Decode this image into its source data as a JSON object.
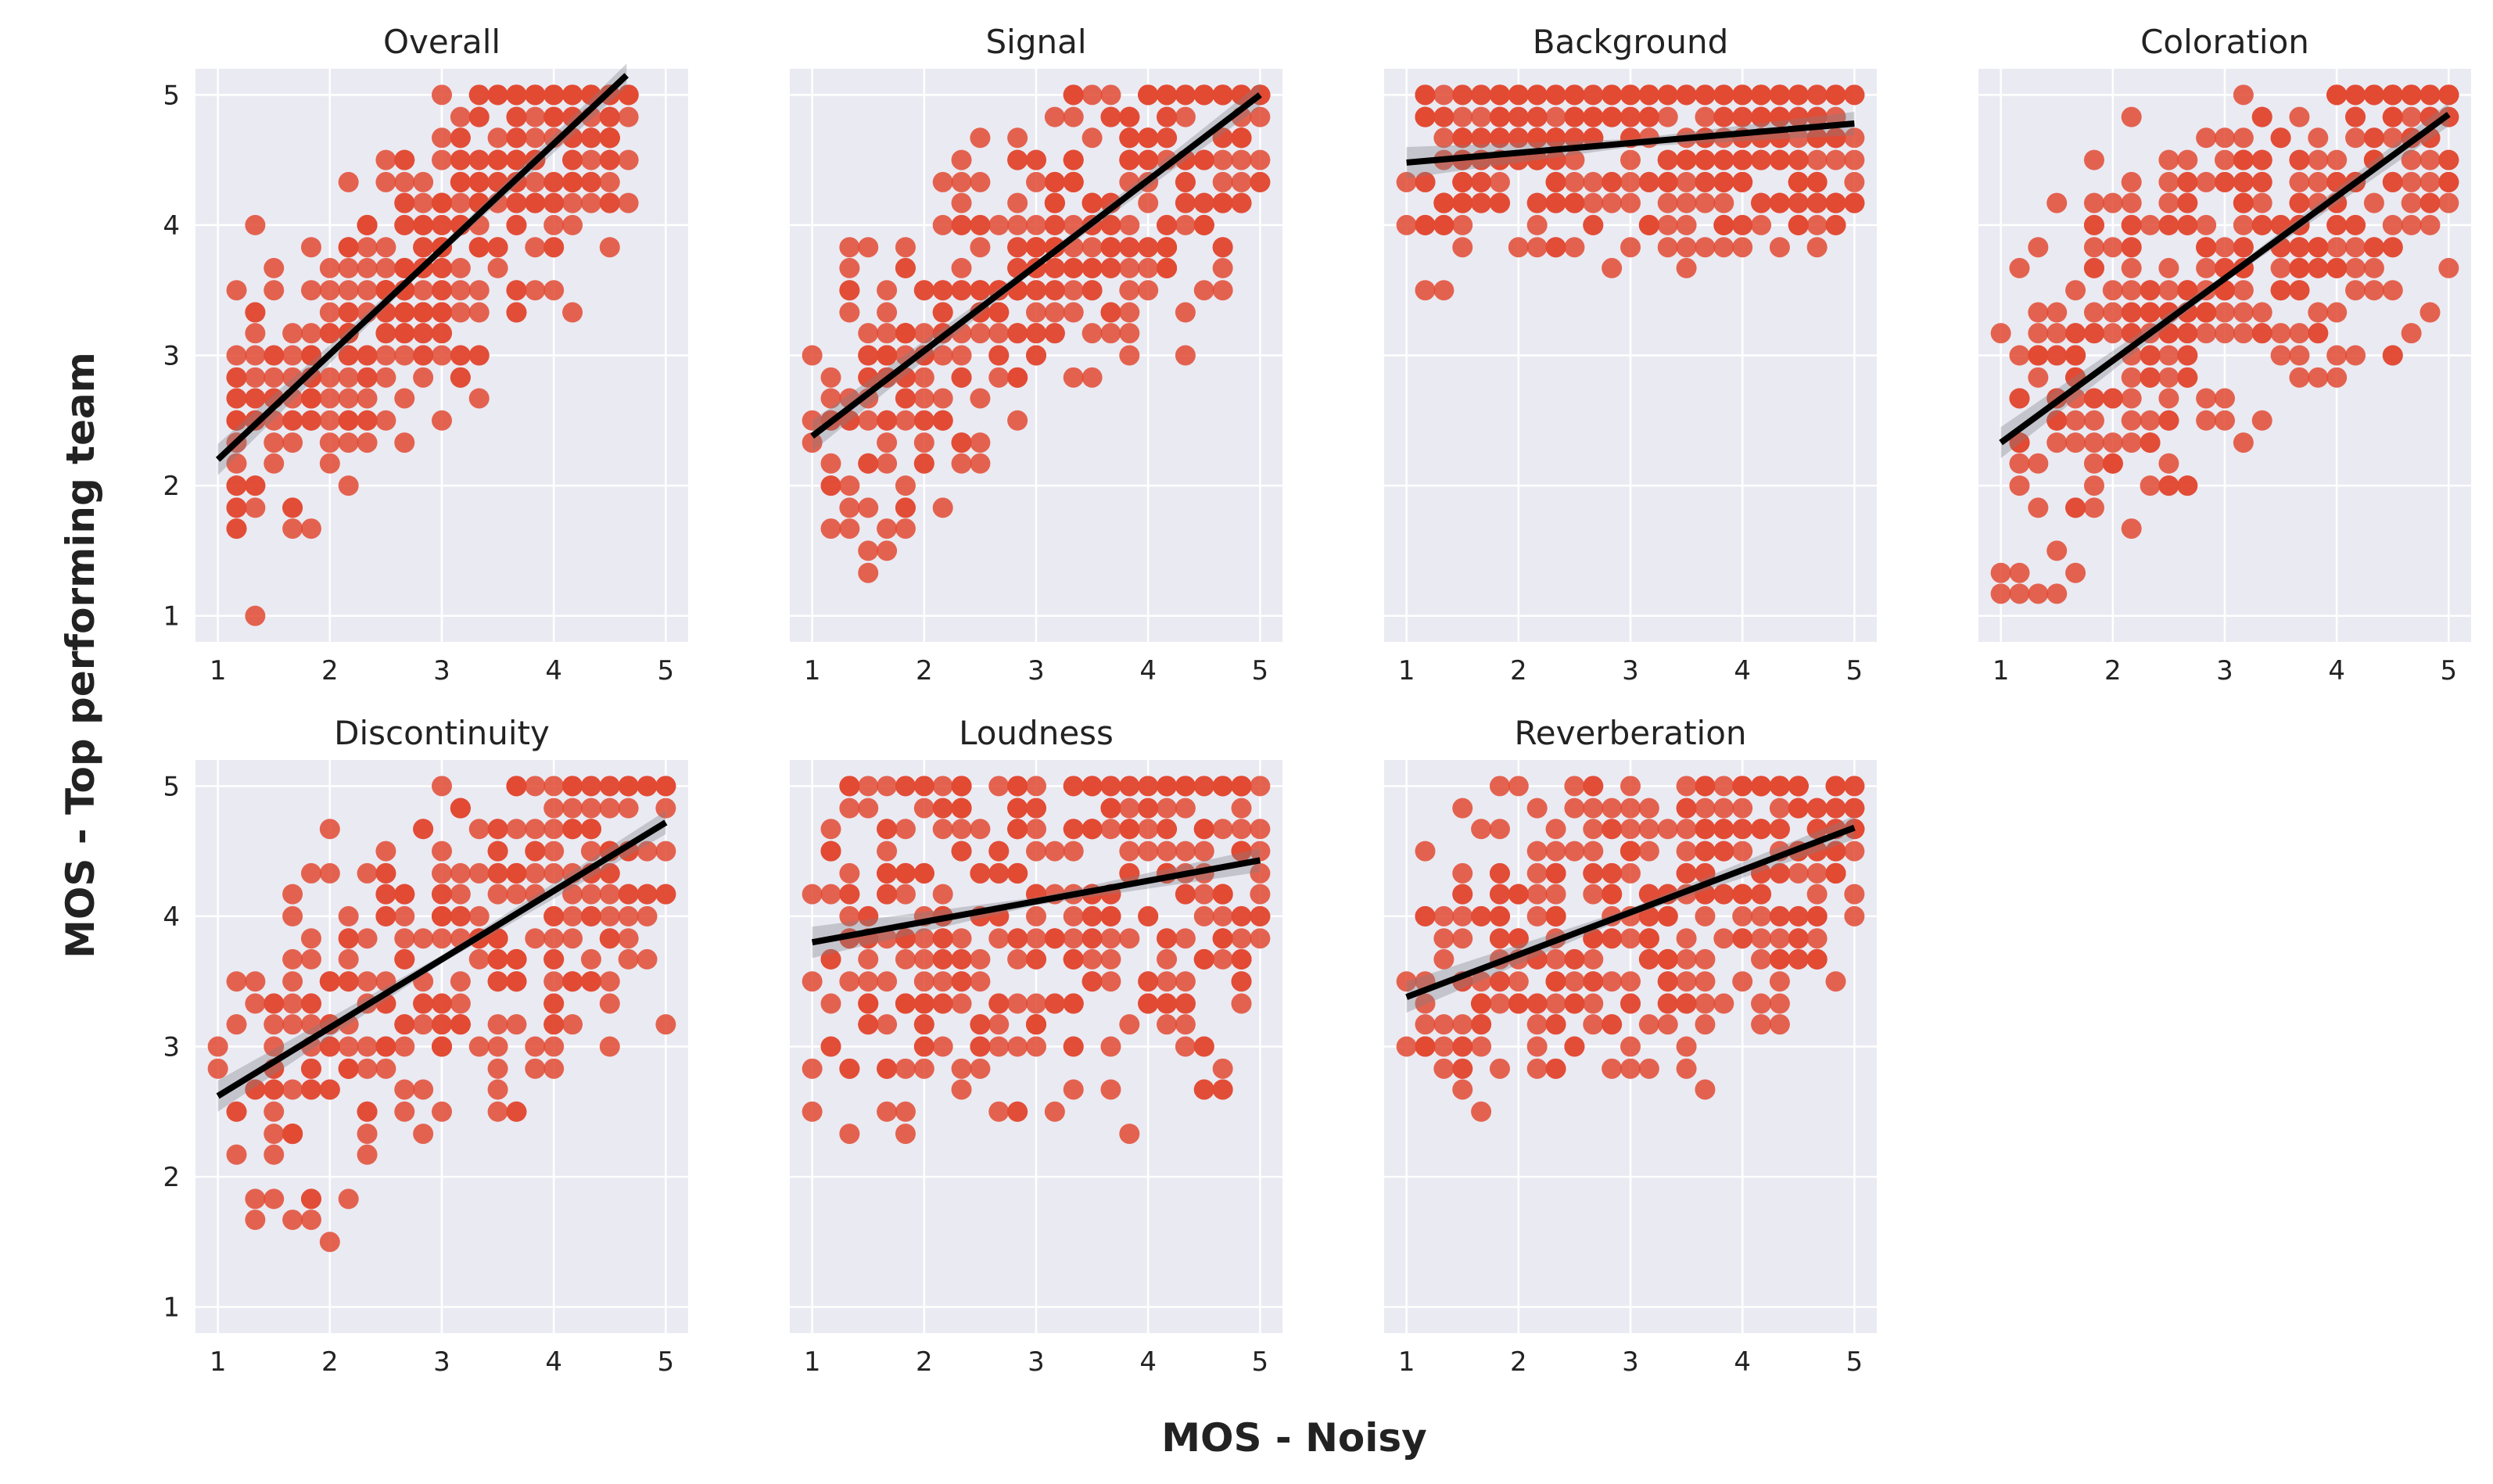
{
  "figure": {
    "xlabel": "MOS - Noisy",
    "ylabel": "MOS - Top performing team"
  },
  "chart_data": [
    {
      "type": "scatter",
      "title": "Overall",
      "xlabel": "",
      "ylabel": "",
      "xlim": [
        0.8,
        5.2
      ],
      "ylim": [
        0.8,
        5.2
      ],
      "xticks": [
        "1",
        "2",
        "3",
        "4",
        "5"
      ],
      "yticks": [
        "1",
        "2",
        "3",
        "4",
        "5"
      ],
      "fit": {
        "x": [
          1.0,
          4.65
        ],
        "y": [
          2.2,
          5.15
        ]
      },
      "seed": 11,
      "n": 380,
      "slope": 0.8,
      "intercept": 1.4,
      "xrange": [
        1.0,
        4.65
      ],
      "spread": 0.55
    },
    {
      "type": "scatter",
      "title": "Signal",
      "xlabel": "",
      "ylabel": "",
      "xlim": [
        0.8,
        5.2
      ],
      "ylim": [
        0.8,
        5.2
      ],
      "xticks": [
        "1",
        "2",
        "3",
        "4",
        "5"
      ],
      "yticks": [
        "",
        "",
        "",
        "",
        ""
      ],
      "fit": {
        "x": [
          1.0,
          5.0
        ],
        "y": [
          2.38,
          5.0
        ]
      },
      "seed": 23,
      "n": 380,
      "slope": 0.655,
      "intercept": 1.725,
      "xrange": [
        1.0,
        5.0
      ],
      "spread": 0.6
    },
    {
      "type": "scatter",
      "title": "Background",
      "xlabel": "",
      "ylabel": "",
      "xlim": [
        0.8,
        5.2
      ],
      "ylim": [
        0.8,
        5.2
      ],
      "xticks": [
        "1",
        "2",
        "3",
        "4",
        "5"
      ],
      "yticks": [
        "",
        "",
        "",
        "",
        ""
      ],
      "fit": {
        "x": [
          1.0,
          5.0
        ],
        "y": [
          4.48,
          4.78
        ]
      },
      "seed": 37,
      "n": 380,
      "slope": 0.075,
      "intercept": 4.405,
      "xrange": [
        1.0,
        5.0
      ],
      "spread": 0.45
    },
    {
      "type": "scatter",
      "title": "Coloration",
      "xlabel": "",
      "ylabel": "",
      "xlim": [
        0.8,
        5.2
      ],
      "ylim": [
        0.8,
        5.2
      ],
      "xticks": [
        "1",
        "2",
        "3",
        "4",
        "5"
      ],
      "yticks": [
        "",
        "",
        "",
        "",
        ""
      ],
      "fit": {
        "x": [
          1.0,
          5.0
        ],
        "y": [
          2.33,
          4.85
        ]
      },
      "seed": 41,
      "n": 380,
      "slope": 0.63,
      "intercept": 1.7,
      "xrange": [
        1.0,
        5.0
      ],
      "spread": 0.65
    },
    {
      "type": "scatter",
      "title": "Discontinuity",
      "xlabel": "",
      "ylabel": "",
      "xlim": [
        0.8,
        5.2
      ],
      "ylim": [
        0.8,
        5.2
      ],
      "xticks": [
        "1",
        "2",
        "3",
        "4",
        "5"
      ],
      "yticks": [
        "1",
        "2",
        "3",
        "4",
        "5"
      ],
      "fit": {
        "x": [
          1.0,
          5.0
        ],
        "y": [
          2.62,
          4.72
        ]
      },
      "seed": 53,
      "n": 300,
      "slope": 0.525,
      "intercept": 2.095,
      "xrange": [
        1.0,
        5.0
      ],
      "spread": 0.7
    },
    {
      "type": "scatter",
      "title": "Loudness",
      "xlabel": "",
      "ylabel": "",
      "xlim": [
        0.8,
        5.2
      ],
      "ylim": [
        0.8,
        5.2
      ],
      "xticks": [
        "1",
        "2",
        "3",
        "4",
        "5"
      ],
      "yticks": [
        "",
        "",
        "",
        "",
        ""
      ],
      "fit": {
        "x": [
          1.0,
          5.0
        ],
        "y": [
          3.8,
          4.43
        ]
      },
      "seed": 67,
      "n": 380,
      "slope": 0.158,
      "intercept": 3.642,
      "xrange": [
        1.0,
        5.0
      ],
      "spread": 0.75
    },
    {
      "type": "scatter",
      "title": "Reverberation",
      "xlabel": "",
      "ylabel": "",
      "xlim": [
        0.8,
        5.2
      ],
      "ylim": [
        0.8,
        5.2
      ],
      "xticks": [
        "1",
        "2",
        "3",
        "4",
        "5"
      ],
      "yticks": [
        "",
        "",
        "",
        "",
        ""
      ],
      "fit": {
        "x": [
          1.0,
          5.0
        ],
        "y": [
          3.38,
          4.68
        ]
      },
      "seed": 79,
      "n": 360,
      "slope": 0.325,
      "intercept": 3.055,
      "xrange": [
        1.0,
        5.0
      ],
      "spread": 0.6
    }
  ]
}
